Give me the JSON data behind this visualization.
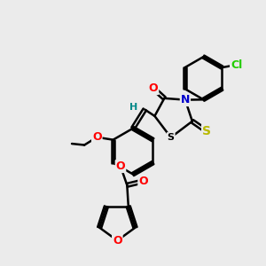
{
  "bg_color": "#ebebeb",
  "bond_color": "#000000",
  "bond_width": 1.8,
  "atom_colors": {
    "O": "#ff0000",
    "N": "#0000cc",
    "S_thione": "#b8b800",
    "S_ring": "#000000",
    "Cl": "#22cc00",
    "H": "#008888",
    "C": "#000000"
  },
  "font_size": 9,
  "fig_size": [
    3.0,
    3.0
  ],
  "dpi": 100
}
